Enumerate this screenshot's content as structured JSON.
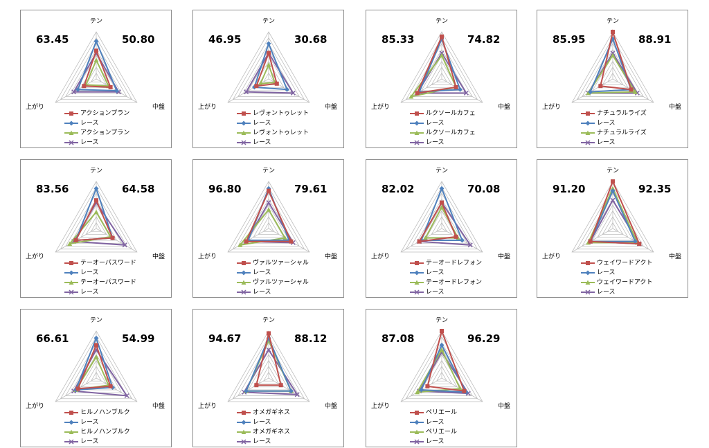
{
  "axis_labels": {
    "top": "テン",
    "left": "上がり",
    "right": "中盤"
  },
  "colors": {
    "horse": "#c0504d",
    "race": "#4f81bd",
    "horse_alt": "#9bbb59",
    "race_alt": "#8064a2",
    "grid": "#bfbfbf",
    "border": "#8c8c8c"
  },
  "legend_markers": [
    "square",
    "diamond",
    "triangle",
    "x"
  ],
  "chart_data": [
    {
      "type": "radar",
      "left_value": "63.45",
      "right_value": "50.80",
      "legend": [
        "アクションプラン",
        "レース",
        "アクションプラン",
        "レース"
      ],
      "axes": [
        "テン",
        "中盤",
        "上がり"
      ],
      "series": [
        {
          "values": [
            0.6,
            0.35,
            0.3
          ]
        },
        {
          "values": [
            0.8,
            0.5,
            0.45
          ]
        },
        {
          "values": [
            0.4,
            0.3,
            0.25
          ]
        },
        {
          "values": [
            0.55,
            0.55,
            0.55
          ]
        }
      ]
    },
    {
      "type": "radar",
      "left_value": "46.95",
      "right_value": "30.68",
      "legend": [
        "レヴォントゥレット",
        "レース",
        "レヴォントゥレット",
        "レース"
      ],
      "axes": [
        "テン",
        "中盤",
        "上がり"
      ],
      "series": [
        {
          "values": [
            0.55,
            0.2,
            0.3
          ]
        },
        {
          "values": [
            0.75,
            0.45,
            0.35
          ]
        },
        {
          "values": [
            0.3,
            0.15,
            0.2
          ]
        },
        {
          "values": [
            0.55,
            0.6,
            0.55
          ]
        }
      ]
    },
    {
      "type": "radar",
      "left_value": "85.33",
      "right_value": "74.82",
      "legend": [
        "ルクソールカフェ",
        "レース",
        "ルクソールカフェ",
        "レース"
      ],
      "axes": [
        "テン",
        "中盤",
        "上がり"
      ],
      "series": [
        {
          "values": [
            0.9,
            0.35,
            0.6
          ]
        },
        {
          "values": [
            0.85,
            0.45,
            0.55
          ]
        },
        {
          "values": [
            0.5,
            0.35,
            0.75
          ]
        },
        {
          "values": [
            0.55,
            0.6,
            0.6
          ]
        }
      ]
    },
    {
      "type": "radar",
      "left_value": "85.95",
      "right_value": "88.91",
      "legend": [
        "ナチュラルライズ",
        "レース",
        "ナチュラルライズ",
        "レース"
      ],
      "axes": [
        "テン",
        "中盤",
        "上がり"
      ],
      "series": [
        {
          "values": [
            1.0,
            0.45,
            0.3
          ]
        },
        {
          "values": [
            0.85,
            0.45,
            0.55
          ]
        },
        {
          "values": [
            0.5,
            0.55,
            0.6
          ]
        },
        {
          "values": [
            0.55,
            0.6,
            0.6
          ]
        }
      ]
    },
    {
      "type": "radar",
      "left_value": "83.56",
      "right_value": "64.58",
      "legend": [
        "テーオーパスワード",
        "レース",
        "テーオーパスワード",
        "レース"
      ],
      "axes": [
        "テン",
        "中盤",
        "上がり"
      ],
      "series": [
        {
          "values": [
            0.6,
            0.4,
            0.5
          ]
        },
        {
          "values": [
            0.85,
            0.4,
            0.5
          ]
        },
        {
          "values": [
            0.35,
            0.35,
            0.65
          ]
        },
        {
          "values": [
            0.55,
            0.7,
            0.55
          ]
        }
      ]
    },
    {
      "type": "radar",
      "left_value": "96.80",
      "right_value": "79.61",
      "legend": [
        "ヴァルツァーシャル",
        "レース",
        "ヴァルツァーシャル",
        "レース"
      ],
      "axes": [
        "テン",
        "中盤",
        "上がり"
      ],
      "series": [
        {
          "values": [
            0.8,
            0.55,
            0.55
          ]
        },
        {
          "values": [
            0.85,
            0.5,
            0.5
          ]
        },
        {
          "values": [
            0.4,
            0.4,
            0.7
          ]
        },
        {
          "values": [
            0.55,
            0.6,
            0.55
          ]
        }
      ]
    },
    {
      "type": "radar",
      "left_value": "82.02",
      "right_value": "70.08",
      "legend": [
        "テーオードレフォン",
        "レース",
        "テーオードレフォン",
        "レース"
      ],
      "axes": [
        "テン",
        "中盤",
        "上がり"
      ],
      "series": [
        {
          "values": [
            0.55,
            0.35,
            0.55
          ]
        },
        {
          "values": [
            0.85,
            0.5,
            0.5
          ]
        },
        {
          "values": [
            0.45,
            0.4,
            0.4
          ]
        },
        {
          "values": [
            0.55,
            0.7,
            0.55
          ]
        }
      ]
    },
    {
      "type": "radar",
      "left_value": "91.20",
      "right_value": "92.35",
      "legend": [
        "ウェイワードアクト",
        "レース",
        "ウェイワードアクト",
        "レース"
      ],
      "axes": [
        "テン",
        "中盤",
        "上がり"
      ],
      "series": [
        {
          "values": [
            1.0,
            0.65,
            0.55
          ]
        },
        {
          "values": [
            0.8,
            0.55,
            0.55
          ]
        },
        {
          "values": [
            0.85,
            0.6,
            0.6
          ]
        },
        {
          "values": [
            0.6,
            0.65,
            0.55
          ]
        }
      ]
    },
    {
      "type": "radar",
      "left_value": "66.61",
      "right_value": "54.99",
      "legend": [
        "ヒルノハンブルク",
        "レース",
        "ヒルノハンブルク",
        "レース"
      ],
      "axes": [
        "テン",
        "中盤",
        "上がり"
      ],
      "series": [
        {
          "values": [
            0.7,
            0.35,
            0.45
          ]
        },
        {
          "values": [
            0.85,
            0.4,
            0.5
          ]
        },
        {
          "values": [
            0.45,
            0.3,
            0.5
          ]
        },
        {
          "values": [
            0.6,
            0.75,
            0.55
          ]
        }
      ]
    },
    {
      "type": "radar",
      "left_value": "94.67",
      "right_value": "88.12",
      "legend": [
        "オメガギネス",
        "レース",
        "オメガギネス",
        "レース"
      ],
      "axes": [
        "テン",
        "中盤",
        "上がり"
      ],
      "series": [
        {
          "values": [
            0.95,
            0.3,
            0.3
          ]
        },
        {
          "values": [
            0.85,
            0.55,
            0.55
          ]
        },
        {
          "values": [
            0.8,
            0.55,
            0.55
          ]
        },
        {
          "values": [
            0.6,
            0.7,
            0.6
          ]
        }
      ]
    },
    {
      "type": "radar",
      "left_value": "87.08",
      "right_value": "96.29",
      "legend": [
        "ペリエール",
        "レース",
        "ペリエール",
        "レース"
      ],
      "axes": [
        "テン",
        "中盤",
        "上がり"
      ],
      "series": [
        {
          "values": [
            1.0,
            0.55,
            0.35
          ]
        },
        {
          "values": [
            0.7,
            0.6,
            0.5
          ]
        },
        {
          "values": [
            0.6,
            0.45,
            0.6
          ]
        },
        {
          "values": [
            0.55,
            0.65,
            0.55
          ]
        }
      ]
    }
  ]
}
